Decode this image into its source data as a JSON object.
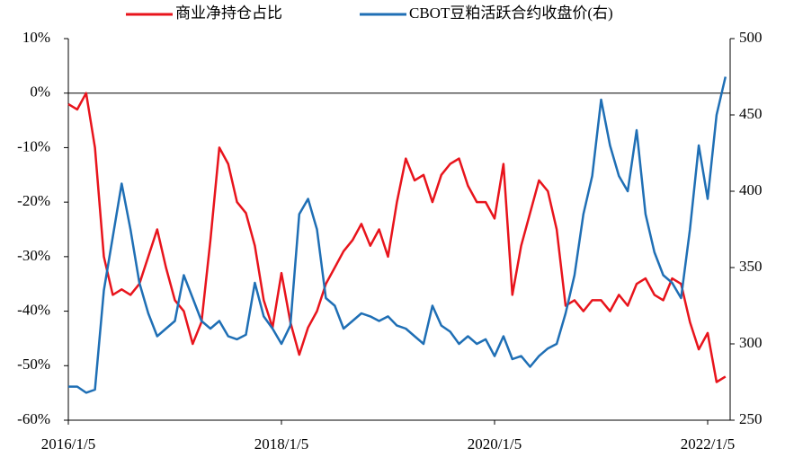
{
  "chart_data": {
    "type": "line",
    "categories": [
      "2016/1/5",
      null,
      null,
      null,
      null,
      null,
      null,
      null,
      null,
      null,
      null,
      null,
      null,
      null,
      null,
      null,
      null,
      null,
      null,
      null,
      null,
      null,
      null,
      null,
      "2018/1/5",
      null,
      null,
      null,
      null,
      null,
      null,
      null,
      null,
      null,
      null,
      null,
      null,
      null,
      null,
      null,
      null,
      null,
      null,
      null,
      null,
      null,
      null,
      null,
      "2020/1/5",
      null,
      null,
      null,
      null,
      null,
      null,
      null,
      null,
      null,
      null,
      null,
      null,
      null,
      null,
      null,
      null,
      null,
      null,
      null,
      null,
      null,
      null,
      null,
      "2022/1/5",
      null,
      null
    ],
    "series": [
      {
        "name": "商业净持仓占比",
        "color": "#e8141c",
        "axis": "y",
        "values": [
          -2,
          -3,
          0,
          -10,
          -30,
          -37,
          -36,
          -37,
          -35,
          -30,
          -25,
          -32,
          -38,
          -40,
          -46,
          -42,
          -27,
          -10,
          -13,
          -20,
          -22,
          -28,
          -38,
          -43,
          -33,
          -42,
          -48,
          -43,
          -40,
          -35,
          -32,
          -29,
          -27,
          -24,
          -28,
          -25,
          -30,
          -20,
          -12,
          -16,
          -15,
          -20,
          -15,
          -13,
          -12,
          -17,
          -20,
          -20,
          -23,
          -13,
          -37,
          -28,
          -22,
          -16,
          -18,
          -25,
          -39,
          -38,
          -40,
          -38,
          -38,
          -40,
          -37,
          -39,
          -35,
          -34,
          -37,
          -38,
          -34,
          -35,
          -42,
          -47,
          -44,
          -53,
          -52
        ]
      },
      {
        "name": "CBOT豆粕活跃合约收盘价(右)",
        "color": "#1f6fb5",
        "axis": "y2",
        "values": [
          272,
          272,
          268,
          270,
          335,
          370,
          405,
          375,
          340,
          320,
          305,
          310,
          315,
          345,
          330,
          315,
          310,
          315,
          305,
          303,
          306,
          340,
          318,
          310,
          300,
          312,
          385,
          395,
          375,
          330,
          325,
          310,
          315,
          320,
          318,
          315,
          318,
          312,
          310,
          305,
          300,
          325,
          312,
          308,
          300,
          305,
          300,
          303,
          292,
          305,
          290,
          292,
          285,
          292,
          297,
          300,
          320,
          345,
          385,
          410,
          460,
          430,
          410,
          400,
          440,
          385,
          360,
          345,
          340,
          330,
          375,
          430,
          395,
          450,
          475
        ]
      }
    ],
    "ylim": [
      -60,
      10
    ],
    "yticks": [
      {
        "value": -60,
        "label": "-60%"
      },
      {
        "value": -50,
        "label": "-50%"
      },
      {
        "value": -40,
        "label": "-40%"
      },
      {
        "value": -30,
        "label": "-30%"
      },
      {
        "value": -20,
        "label": "-20%"
      },
      {
        "value": -10,
        "label": "-10%"
      },
      {
        "value": 0,
        "label": "0%"
      },
      {
        "value": 10,
        "label": "10%"
      }
    ],
    "y2lim": [
      250,
      500
    ],
    "y2ticks": [
      250,
      300,
      350,
      400,
      450,
      500
    ],
    "legend": "top"
  }
}
